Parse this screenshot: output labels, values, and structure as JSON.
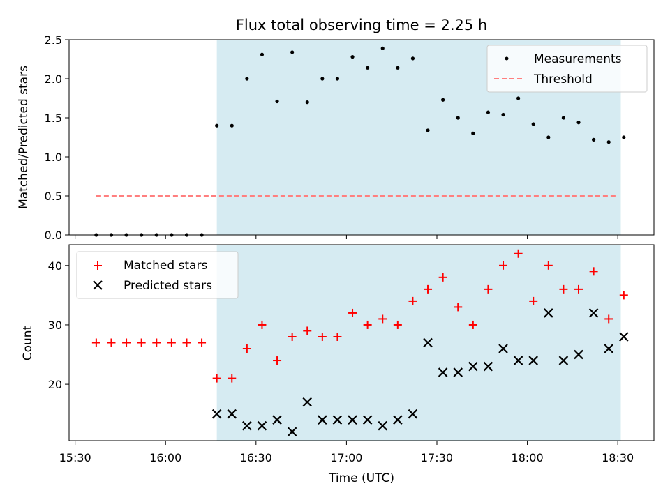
{
  "chart_data": [
    {
      "type": "scatter",
      "title": "Flux total observing time = 2.25 h",
      "xlabel": "",
      "ylabel": "Matched/Predicted stars",
      "ylim": [
        0,
        2.5
      ],
      "yticks": [
        "0.0",
        "0.5",
        "1.0",
        "1.5",
        "2.0",
        "2.5"
      ],
      "xlim_minutes_utc": [
        928,
        1122
      ],
      "shaded_span": [
        "16:17",
        "18:31"
      ],
      "colors": {
        "measurements": "#000000",
        "threshold": "#ff7f7f",
        "shade": "#add8e6"
      },
      "legend": {
        "placement": "top-right",
        "entries": [
          "Measurements",
          "Threshold"
        ]
      },
      "threshold": {
        "value": 0.5,
        "x_start": "15:37",
        "x_end": "18:30"
      },
      "series": [
        {
          "name": "Measurements",
          "x": [
            "15:37",
            "15:42",
            "15:47",
            "15:52",
            "15:57",
            "16:02",
            "16:07",
            "16:12",
            "16:17",
            "16:22",
            "16:27",
            "16:32",
            "16:37",
            "16:42",
            "16:47",
            "16:52",
            "16:57",
            "17:02",
            "17:07",
            "17:12",
            "17:17",
            "17:22",
            "17:27",
            "17:32",
            "17:37",
            "17:42",
            "17:47",
            "17:52",
            "17:57",
            "18:02",
            "18:07",
            "18:12",
            "18:17",
            "18:22",
            "18:27",
            "18:32"
          ],
          "values": [
            0,
            0,
            0,
            0,
            0,
            0,
            0,
            0,
            1.4,
            1.4,
            2.0,
            2.31,
            1.71,
            2.34,
            1.7,
            2.0,
            2.0,
            2.28,
            2.14,
            2.39,
            2.14,
            2.26,
            1.34,
            1.73,
            1.5,
            1.3,
            1.57,
            1.54,
            1.75,
            1.42,
            1.25,
            1.5,
            1.44,
            1.22,
            1.19,
            1.25
          ]
        }
      ]
    },
    {
      "type": "scatter",
      "title": "",
      "xlabel": "Time (UTC)",
      "ylabel": "Count",
      "ylim": [
        10.5,
        43.5
      ],
      "yticks": [
        "20",
        "30",
        "40"
      ],
      "xticks": [
        "15:30",
        "16:00",
        "16:30",
        "17:00",
        "17:30",
        "18:00",
        "18:30"
      ],
      "legend": {
        "placement": "top-left",
        "entries": [
          "Matched stars",
          "Predicted stars"
        ]
      },
      "colors": {
        "matched": "#ff0000",
        "predicted": "#000000"
      },
      "series": [
        {
          "name": "Matched stars",
          "x": [
            "15:37",
            "15:42",
            "15:47",
            "15:52",
            "15:57",
            "16:02",
            "16:07",
            "16:12",
            "16:17",
            "16:22",
            "16:27",
            "16:32",
            "16:37",
            "16:42",
            "16:47",
            "16:52",
            "16:57",
            "17:02",
            "17:07",
            "17:12",
            "17:17",
            "17:22",
            "17:27",
            "17:32",
            "17:37",
            "17:42",
            "17:47",
            "17:52",
            "17:57",
            "18:02",
            "18:07",
            "18:12",
            "18:17",
            "18:22",
            "18:27",
            "18:32"
          ],
          "values": [
            27,
            27,
            27,
            27,
            27,
            27,
            27,
            27,
            21,
            21,
            26,
            30,
            24,
            28,
            29,
            28,
            28,
            32,
            30,
            31,
            30,
            34,
            36,
            38,
            33,
            30,
            36,
            40,
            42,
            34,
            40,
            36,
            36,
            39,
            31,
            35
          ]
        },
        {
          "name": "Predicted stars",
          "x": [
            "16:17",
            "16:22",
            "16:27",
            "16:32",
            "16:37",
            "16:42",
            "16:47",
            "16:52",
            "16:57",
            "17:02",
            "17:07",
            "17:12",
            "17:17",
            "17:22",
            "17:27",
            "17:32",
            "17:37",
            "17:42",
            "17:47",
            "17:52",
            "17:57",
            "18:02",
            "18:07",
            "18:12",
            "18:17",
            "18:22",
            "18:27",
            "18:32"
          ],
          "values": [
            15,
            15,
            13,
            13,
            14,
            12,
            17,
            14,
            14,
            14,
            14,
            13,
            14,
            15,
            27,
            22,
            22,
            23,
            23,
            26,
            24,
            24,
            32,
            24,
            25,
            32,
            26,
            28
          ]
        }
      ]
    }
  ]
}
